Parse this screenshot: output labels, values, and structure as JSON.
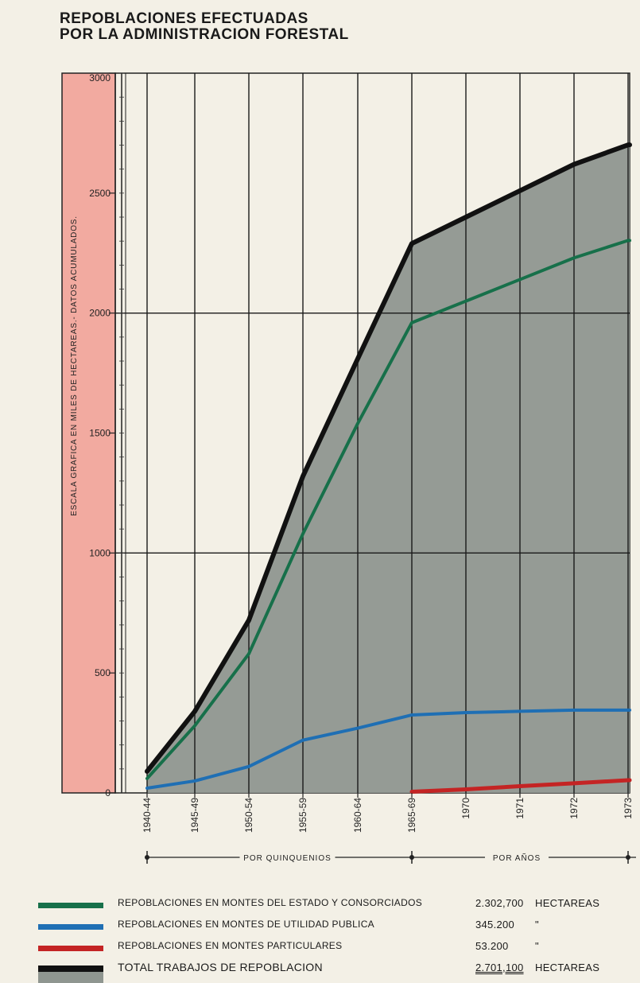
{
  "title_line1": "REPOBLACIONES EFECTUADAS",
  "title_line2": "POR LA ADMINISTRACION FORESTAL",
  "chart_data": {
    "type": "area",
    "ylabel": "ESCALA GRAFICA EN MILES DE HECTAREAS.- DATOS ACUMULADOS.",
    "ylim": [
      0,
      3000
    ],
    "yticks": [
      0,
      500,
      1000,
      1500,
      2000,
      2500,
      3000
    ],
    "categories": [
      "1940-44",
      "1945-49",
      "1950-54",
      "1955-59",
      "1960-64",
      "1965-69",
      "1970",
      "1971",
      "1972",
      "1973"
    ],
    "group_labels": [
      "POR QUINQUENIOS",
      "POR AÑOS"
    ],
    "series": [
      {
        "name": "REPOBLACIONES EN MONTES DEL ESTADO Y CONSORCIADOS",
        "color": "#17704a",
        "values": [
          60,
          280,
          580,
          1080,
          1540,
          1960,
          2050,
          2140,
          2230,
          2302.7
        ]
      },
      {
        "name": "REPOBLACIONES EN MONTES DE UTILIDAD PUBLICA",
        "color": "#1f6fb4",
        "values": [
          20,
          50,
          110,
          220,
          270,
          325,
          335,
          340,
          345,
          345.2
        ]
      },
      {
        "name": "REPOBLACIONES EN MONTES PARTICULARES",
        "color": "#c42424",
        "values": [
          null,
          null,
          null,
          null,
          null,
          5,
          15,
          28,
          40,
          53.2
        ]
      },
      {
        "name": "TOTAL TRABAJOS DE REPOBLACION",
        "color": "#111111",
        "values": [
          90,
          340,
          720,
          1320,
          1810,
          2290,
          2400,
          2510,
          2620,
          2701.1
        ]
      }
    ],
    "grid": true,
    "area_color": "#8f9690",
    "scale_band_color": "#f2aaa0"
  },
  "legend": [
    {
      "label": "REPOBLACIONES EN MONTES DEL ESTADO Y CONSORCIADOS",
      "value": "2.302,700",
      "unit": "HECTAREAS"
    },
    {
      "label": "REPOBLACIONES EN MONTES DE UTILIDAD PUBLICA",
      "value": "345.200",
      "unit": "\""
    },
    {
      "label": "REPOBLACIONES EN MONTES PARTICULARES",
      "value": "53.200",
      "unit": "\""
    },
    {
      "label": "TOTAL TRABAJOS DE REPOBLACION",
      "value": "2.701,100",
      "unit": "HECTAREAS"
    }
  ]
}
